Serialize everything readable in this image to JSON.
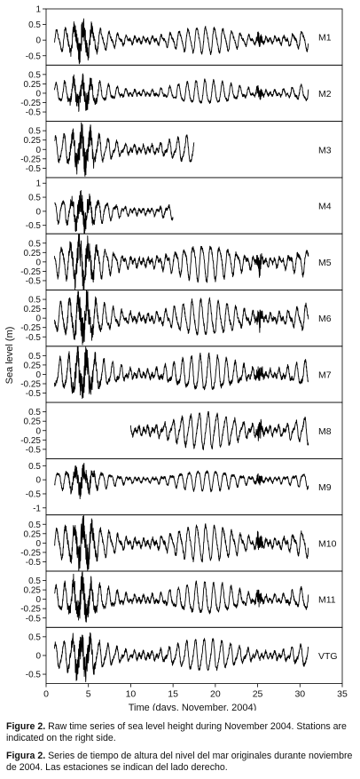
{
  "chart_data": {
    "type": "line",
    "ylabel": "Sea level (m)",
    "xlabel": "Time (days, November, 2004)",
    "xlim": [
      0,
      35
    ],
    "xticks": [
      "0",
      "5",
      "10",
      "15",
      "20",
      "25",
      "30",
      "35"
    ],
    "grid": false,
    "legend": "none",
    "line_color": "#000000",
    "panels": [
      {
        "station": "M1",
        "ylim": [
          -0.8,
          1.0
        ],
        "yticks": [
          "1",
          "0.5",
          "0",
          "-0.5"
        ],
        "x_start": 1.0,
        "x_end": 31.0,
        "amplitude_m": 0.4
      },
      {
        "station": "M2",
        "ylim": [
          -0.75,
          0.75
        ],
        "yticks": [
          "0.5",
          "0.25",
          "0",
          "-0.25",
          "-0.5"
        ],
        "x_start": 1.0,
        "x_end": 31.0,
        "amplitude_m": 0.3
      },
      {
        "station": "M3",
        "ylim": [
          -0.75,
          0.75
        ],
        "yticks": [
          "0.5",
          "0.25",
          "0",
          "-0.25",
          "-0.5"
        ],
        "x_start": 1.0,
        "x_end": 17.5,
        "amplitude_m": 0.4
      },
      {
        "station": "M4",
        "ylim": [
          -0.8,
          1.2
        ],
        "yticks": [
          "1",
          "0.5",
          "0",
          "-0.5"
        ],
        "x_start": 1.0,
        "x_end": 15.0,
        "amplitude_m": 0.45
      },
      {
        "station": "M5",
        "ylim": [
          -0.75,
          0.75
        ],
        "yticks": [
          "0.5",
          "0.25",
          "0",
          "-0.25",
          "-0.5"
        ],
        "x_start": 1.0,
        "x_end": 31.0,
        "amplitude_m": 0.45
      },
      {
        "station": "M6",
        "ylim": [
          -0.75,
          0.75
        ],
        "yticks": [
          "0.5",
          "0.25",
          "0",
          "-0.25",
          "-0.5"
        ],
        "x_start": 1.0,
        "x_end": 31.0,
        "amplitude_m": 0.45
      },
      {
        "station": "M7",
        "ylim": [
          -0.75,
          0.75
        ],
        "yticks": [
          "0.5",
          "0.25",
          "0",
          "-0.25",
          "-0.5"
        ],
        "x_start": 1.0,
        "x_end": 31.0,
        "amplitude_m": 0.45
      },
      {
        "station": "M8",
        "ylim": [
          -0.75,
          0.75
        ],
        "yticks": [
          "0.5",
          "0.25",
          "0",
          "-0.25",
          "-0.5"
        ],
        "x_start": 10.0,
        "x_end": 31.0,
        "amplitude_m": 0.45
      },
      {
        "station": "M9",
        "ylim": [
          -1.25,
          0.75
        ],
        "yticks": [
          "0.5",
          "0",
          "-0.5",
          "-1"
        ],
        "x_start": 1.0,
        "x_end": 31.0,
        "amplitude_m": 0.35
      },
      {
        "station": "M10",
        "ylim": [
          -0.75,
          0.75
        ],
        "yticks": [
          "0.5",
          "0.25",
          "0",
          "-0.25",
          "-0.5"
        ],
        "x_start": 1.0,
        "x_end": 31.0,
        "amplitude_m": 0.45
      },
      {
        "station": "M11",
        "ylim": [
          -0.75,
          0.75
        ],
        "yticks": [
          "0.5",
          "0.25",
          "0",
          "-0.25",
          "-0.5"
        ],
        "x_start": 1.0,
        "x_end": 31.0,
        "amplitude_m": 0.4
      },
      {
        "station": "VTG",
        "ylim": [
          -0.75,
          0.75
        ],
        "yticks": [
          "0.5",
          "0",
          "-0.5"
        ],
        "x_start": 1.0,
        "x_end": 31.0,
        "amplitude_m": 0.4
      }
    ]
  },
  "caption": {
    "en_label": "Figure 2.",
    "en_text": " Raw time series of sea level height during November 2004. Stations are indicated on the right side.",
    "es_label": "Figura 2.",
    "es_text": " Series de tiempo de altura del nivel del mar originales durante noviembre de 2004. Las estaciones se indican del lado derecho."
  }
}
